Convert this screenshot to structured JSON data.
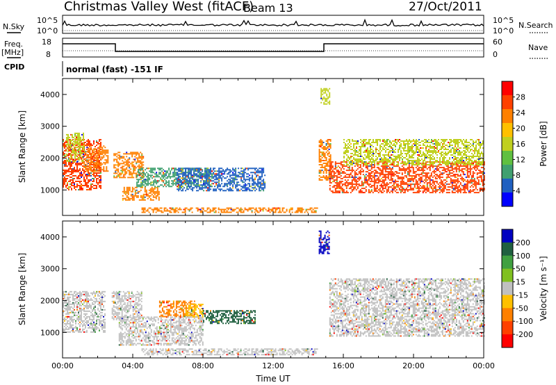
{
  "header": {
    "site": "Christmas Valley West (fitACF)",
    "beam": "Beam 13",
    "date": "27/Oct/2011"
  },
  "left_labels": {
    "nsky": "N.Sky",
    "freq": "Freq.",
    "freq_unit": "[MHz]",
    "cpid": "CPID"
  },
  "right_labels": {
    "nsearch": "N.Search",
    "nave": "Nave"
  },
  "noise_panel": {
    "ticks_left": [
      "10^5",
      "10^0"
    ],
    "ticks_right": [
      "10^5",
      "10^0"
    ]
  },
  "freq_panel": {
    "ticks_left": [
      "18",
      "8"
    ],
    "ticks_right": [
      "60",
      "0"
    ]
  },
  "cpid_text": "normal (fast) -151 IF",
  "colors": {
    "power": [
      "#0000ff",
      "#2060c0",
      "#40a070",
      "#60c040",
      "#c0d020",
      "#ffc000",
      "#ff8000",
      "#ff4000",
      "#ff0000"
    ],
    "velocity": [
      "#0000c0",
      "#206040",
      "#40a040",
      "#80c020",
      "#c0c0c0",
      "#ffc000",
      "#ff8000",
      "#ff4000",
      "#ff0000"
    ]
  },
  "chart_data": [
    {
      "type": "heatmap",
      "quantity": "power",
      "ylabel": "Slant Range [km]",
      "yticks": [
        1000,
        2000,
        3000,
        4000
      ],
      "ylim": [
        200,
        4500
      ],
      "xlim": [
        0,
        24
      ],
      "colorbar_label": "Power [dB]",
      "colorbar_ticks": [
        4,
        8,
        12,
        16,
        20,
        24,
        28
      ],
      "colorbar_range": [
        0,
        32
      ],
      "regions": [
        {
          "x": [
            0.0,
            2.2
          ],
          "y": [
            1000,
            2600
          ],
          "level": 28
        },
        {
          "x": [
            1.2,
            2.6
          ],
          "y": [
            1600,
            2400
          ],
          "level": 24
        },
        {
          "x": [
            0.2,
            1.2
          ],
          "y": [
            1900,
            2800
          ],
          "level": 18
        },
        {
          "x": [
            2.9,
            4.6
          ],
          "y": [
            1400,
            2200
          ],
          "level": 26
        },
        {
          "x": [
            3.4,
            5.5
          ],
          "y": [
            700,
            1100
          ],
          "level": 24
        },
        {
          "x": [
            4.2,
            8.5
          ],
          "y": [
            1100,
            1700
          ],
          "level": 8
        },
        {
          "x": [
            6.5,
            11.5
          ],
          "y": [
            1000,
            1700
          ],
          "level": 6
        },
        {
          "x": [
            4.5,
            14.5
          ],
          "y": [
            300,
            450
          ],
          "level": 24
        },
        {
          "x": [
            14.6,
            15.3
          ],
          "y": [
            1300,
            2600
          ],
          "level": 24
        },
        {
          "x": [
            15.2,
            24.0
          ],
          "y": [
            900,
            1900
          ],
          "level": 30
        },
        {
          "x": [
            16.0,
            24.0
          ],
          "y": [
            1800,
            2600
          ],
          "level": 16
        },
        {
          "x": [
            14.7,
            15.2
          ],
          "y": [
            3700,
            4200
          ],
          "level": 18
        }
      ]
    },
    {
      "type": "heatmap",
      "quantity": "velocity",
      "ylabel": "Slant Range [km]",
      "yticks": [
        1000,
        2000,
        3000,
        4000
      ],
      "ylim": [
        200,
        4500
      ],
      "xlim": [
        0,
        24
      ],
      "xlabel": "Time UT",
      "xticks": [
        "00:00",
        "04:00",
        "08:00",
        "12:00",
        "16:00",
        "20:00",
        "00:00"
      ],
      "colorbar_label": "Velocity [m s⁻¹]",
      "colorbar_ticks": [
        200,
        100,
        50,
        15,
        -15,
        -50,
        -100,
        -200
      ],
      "regions": [
        {
          "x": [
            0.0,
            2.4
          ],
          "y": [
            1000,
            2300
          ],
          "level": 0
        },
        {
          "x": [
            2.8,
            4.5
          ],
          "y": [
            1400,
            2300
          ],
          "level": 0
        },
        {
          "x": [
            5.5,
            7.5
          ],
          "y": [
            1500,
            2000
          ],
          "level": -150
        },
        {
          "x": [
            7.0,
            8.0
          ],
          "y": [
            1500,
            1900
          ],
          "level": -80
        },
        {
          "x": [
            3.2,
            8.0
          ],
          "y": [
            600,
            1500
          ],
          "level": -40
        },
        {
          "x": [
            8.0,
            11.0
          ],
          "y": [
            1300,
            1700
          ],
          "level": 60
        },
        {
          "x": [
            4.5,
            14.5
          ],
          "y": [
            300,
            500
          ],
          "level": -40
        },
        {
          "x": [
            14.6,
            15.2
          ],
          "y": [
            3500,
            4200
          ],
          "level": 200
        },
        {
          "x": [
            15.2,
            24.0
          ],
          "y": [
            900,
            2700
          ],
          "level": 0
        }
      ]
    }
  ]
}
